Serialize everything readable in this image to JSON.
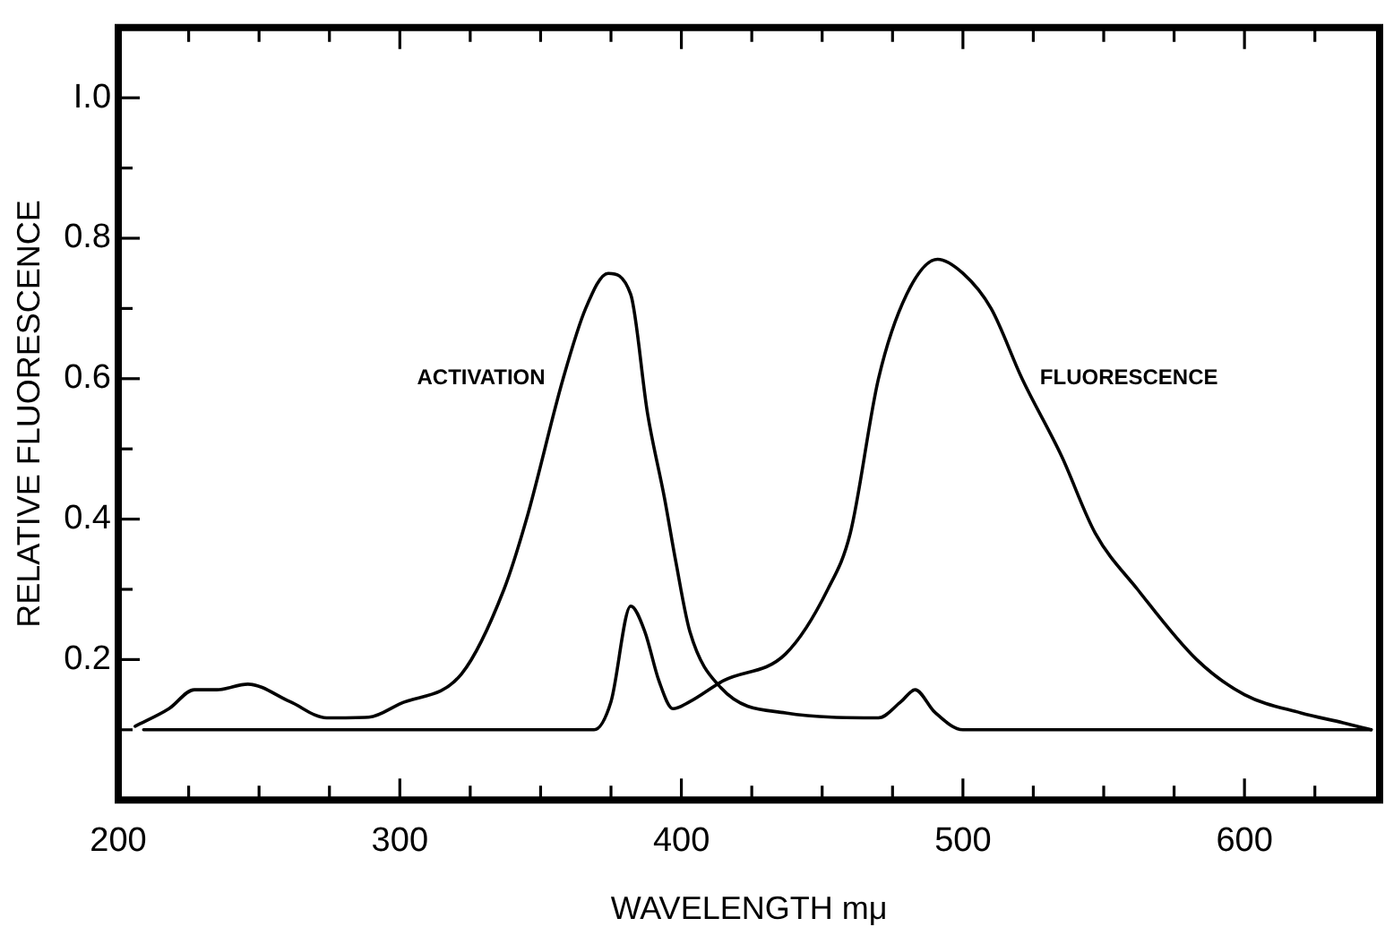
{
  "chart_data": {
    "type": "line",
    "xlabel": "WAVELENGTH mμ",
    "ylabel": "RELATIVE FLUORESCENCE",
    "xlim": [
      200,
      648
    ],
    "ylim": [
      0,
      1.1
    ],
    "xticks": [
      200,
      {
        "value": 225,
        "label": null
      },
      {
        "value": 250,
        "label": null
      },
      {
        "value": 275,
        "label": null
      },
      300,
      {
        "value": 325,
        "label": null
      },
      {
        "value": 350,
        "label": null
      },
      {
        "value": 375,
        "label": null
      },
      400,
      {
        "value": 425,
        "label": null
      },
      {
        "value": 450,
        "label": null
      },
      {
        "value": 475,
        "label": null
      },
      500,
      {
        "value": 525,
        "label": null
      },
      {
        "value": 550,
        "label": null
      },
      {
        "value": 575,
        "label": null
      },
      600,
      {
        "value": 625,
        "label": null
      }
    ],
    "yticks": [
      {
        "value": 0.1,
        "label": null
      },
      0.2,
      {
        "value": 0.3,
        "label": null
      },
      0.4,
      {
        "value": 0.5,
        "label": null
      },
      0.6,
      {
        "value": 0.7,
        "label": null
      },
      0.8,
      {
        "value": 0.9,
        "label": null
      },
      {
        "value": 1.0,
        "label": "I.0"
      }
    ],
    "grid": false,
    "legend": false,
    "marker": "none",
    "line_style": "solid",
    "series": [
      {
        "name": "ACTIVATION",
        "color": "#000000",
        "x": [
          206,
          218,
          227,
          235,
          246,
          261,
          274,
          289,
          300,
          322,
          337,
          345,
          358,
          366,
          374,
          382,
          388,
          394,
          398,
          403,
          414,
          437,
          470,
          478,
          483,
          490,
          500,
          550,
          600,
          645
        ],
        "values": [
          0.105,
          0.13,
          0.157,
          0.157,
          0.165,
          0.14,
          0.117,
          0.118,
          0.137,
          0.18,
          0.3,
          0.4,
          0.6,
          0.7,
          0.75,
          0.72,
          0.55,
          0.43,
          0.34,
          0.24,
          0.16,
          0.124,
          0.117,
          0.14,
          0.157,
          0.125,
          0.1,
          0.1,
          0.1,
          0.1
        ]
      },
      {
        "name": "FLUORESCENCE",
        "color": "#000000",
        "x": [
          209,
          250,
          300,
          350,
          369,
          375,
          382,
          387,
          392,
          397,
          403,
          415,
          437,
          452,
          460,
          470,
          480,
          491,
          500,
          510,
          521,
          535,
          547,
          562,
          583,
          600,
          620,
          635,
          645
        ],
        "values": [
          0.1,
          0.1,
          0.1,
          0.1,
          0.1,
          0.14,
          0.276,
          0.24,
          0.17,
          0.13,
          0.14,
          0.17,
          0.208,
          0.3,
          0.38,
          0.6,
          0.72,
          0.77,
          0.75,
          0.7,
          0.6,
          0.49,
          0.38,
          0.3,
          0.2,
          0.15,
          0.124,
          0.11,
          0.1
        ]
      }
    ]
  }
}
